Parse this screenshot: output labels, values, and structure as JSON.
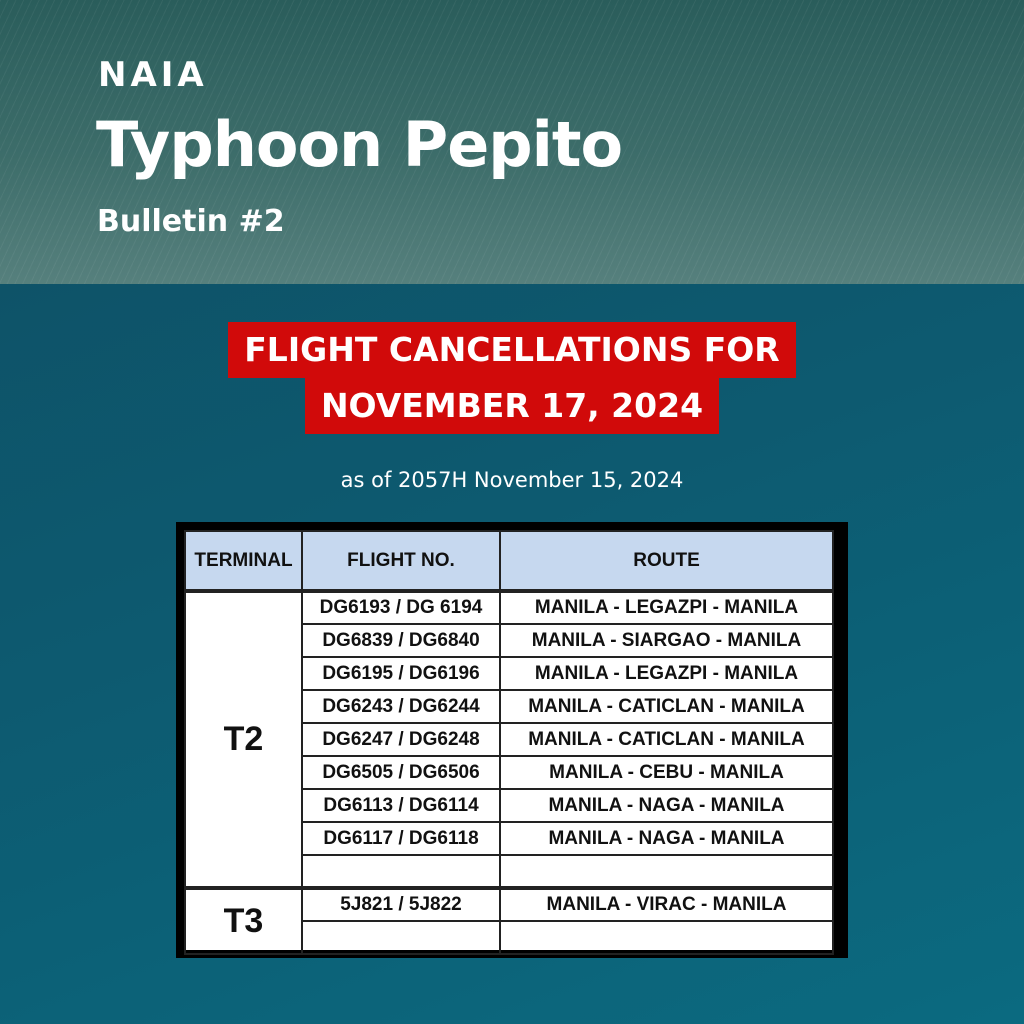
{
  "header": {
    "logo": "NAIA",
    "title": "Typhoon Pepito",
    "subtitle": "Bulletin #2"
  },
  "banner": {
    "line1": "FLIGHT CANCELLATIONS FOR",
    "line2": "NOVEMBER 17, 2024",
    "color": "#d10a0a"
  },
  "as_of": "as of 2057H November 15, 2024",
  "table": {
    "columns": [
      "TERMINAL",
      "FLIGHT NO.",
      "ROUTE"
    ],
    "groups": [
      {
        "terminal": "T2",
        "rows": [
          {
            "flight": "DG6193 / DG 6194",
            "route": "MANILA - LEGAZPI - MANILA"
          },
          {
            "flight": "DG6839 / DG6840",
            "route": "MANILA - SIARGAO - MANILA"
          },
          {
            "flight": "DG6195 / DG6196",
            "route": "MANILA - LEGAZPI - MANILA"
          },
          {
            "flight": "DG6243 / DG6244",
            "route": "MANILA - CATICLAN - MANILA"
          },
          {
            "flight": "DG6247 / DG6248",
            "route": "MANILA - CATICLAN - MANILA"
          },
          {
            "flight": "DG6505 / DG6506",
            "route": "MANILA - CEBU - MANILA"
          },
          {
            "flight": "DG6113 / DG6114",
            "route": "MANILA - NAGA - MANILA"
          },
          {
            "flight": "DG6117 / DG6118",
            "route": "MANILA - NAGA - MANILA"
          },
          {
            "flight": "",
            "route": ""
          }
        ]
      },
      {
        "terminal": "T3",
        "rows": [
          {
            "flight": "5J821 / 5J822",
            "route": "MANILA - VIRAC - MANILA"
          },
          {
            "flight": "",
            "route": ""
          }
        ]
      }
    ]
  }
}
